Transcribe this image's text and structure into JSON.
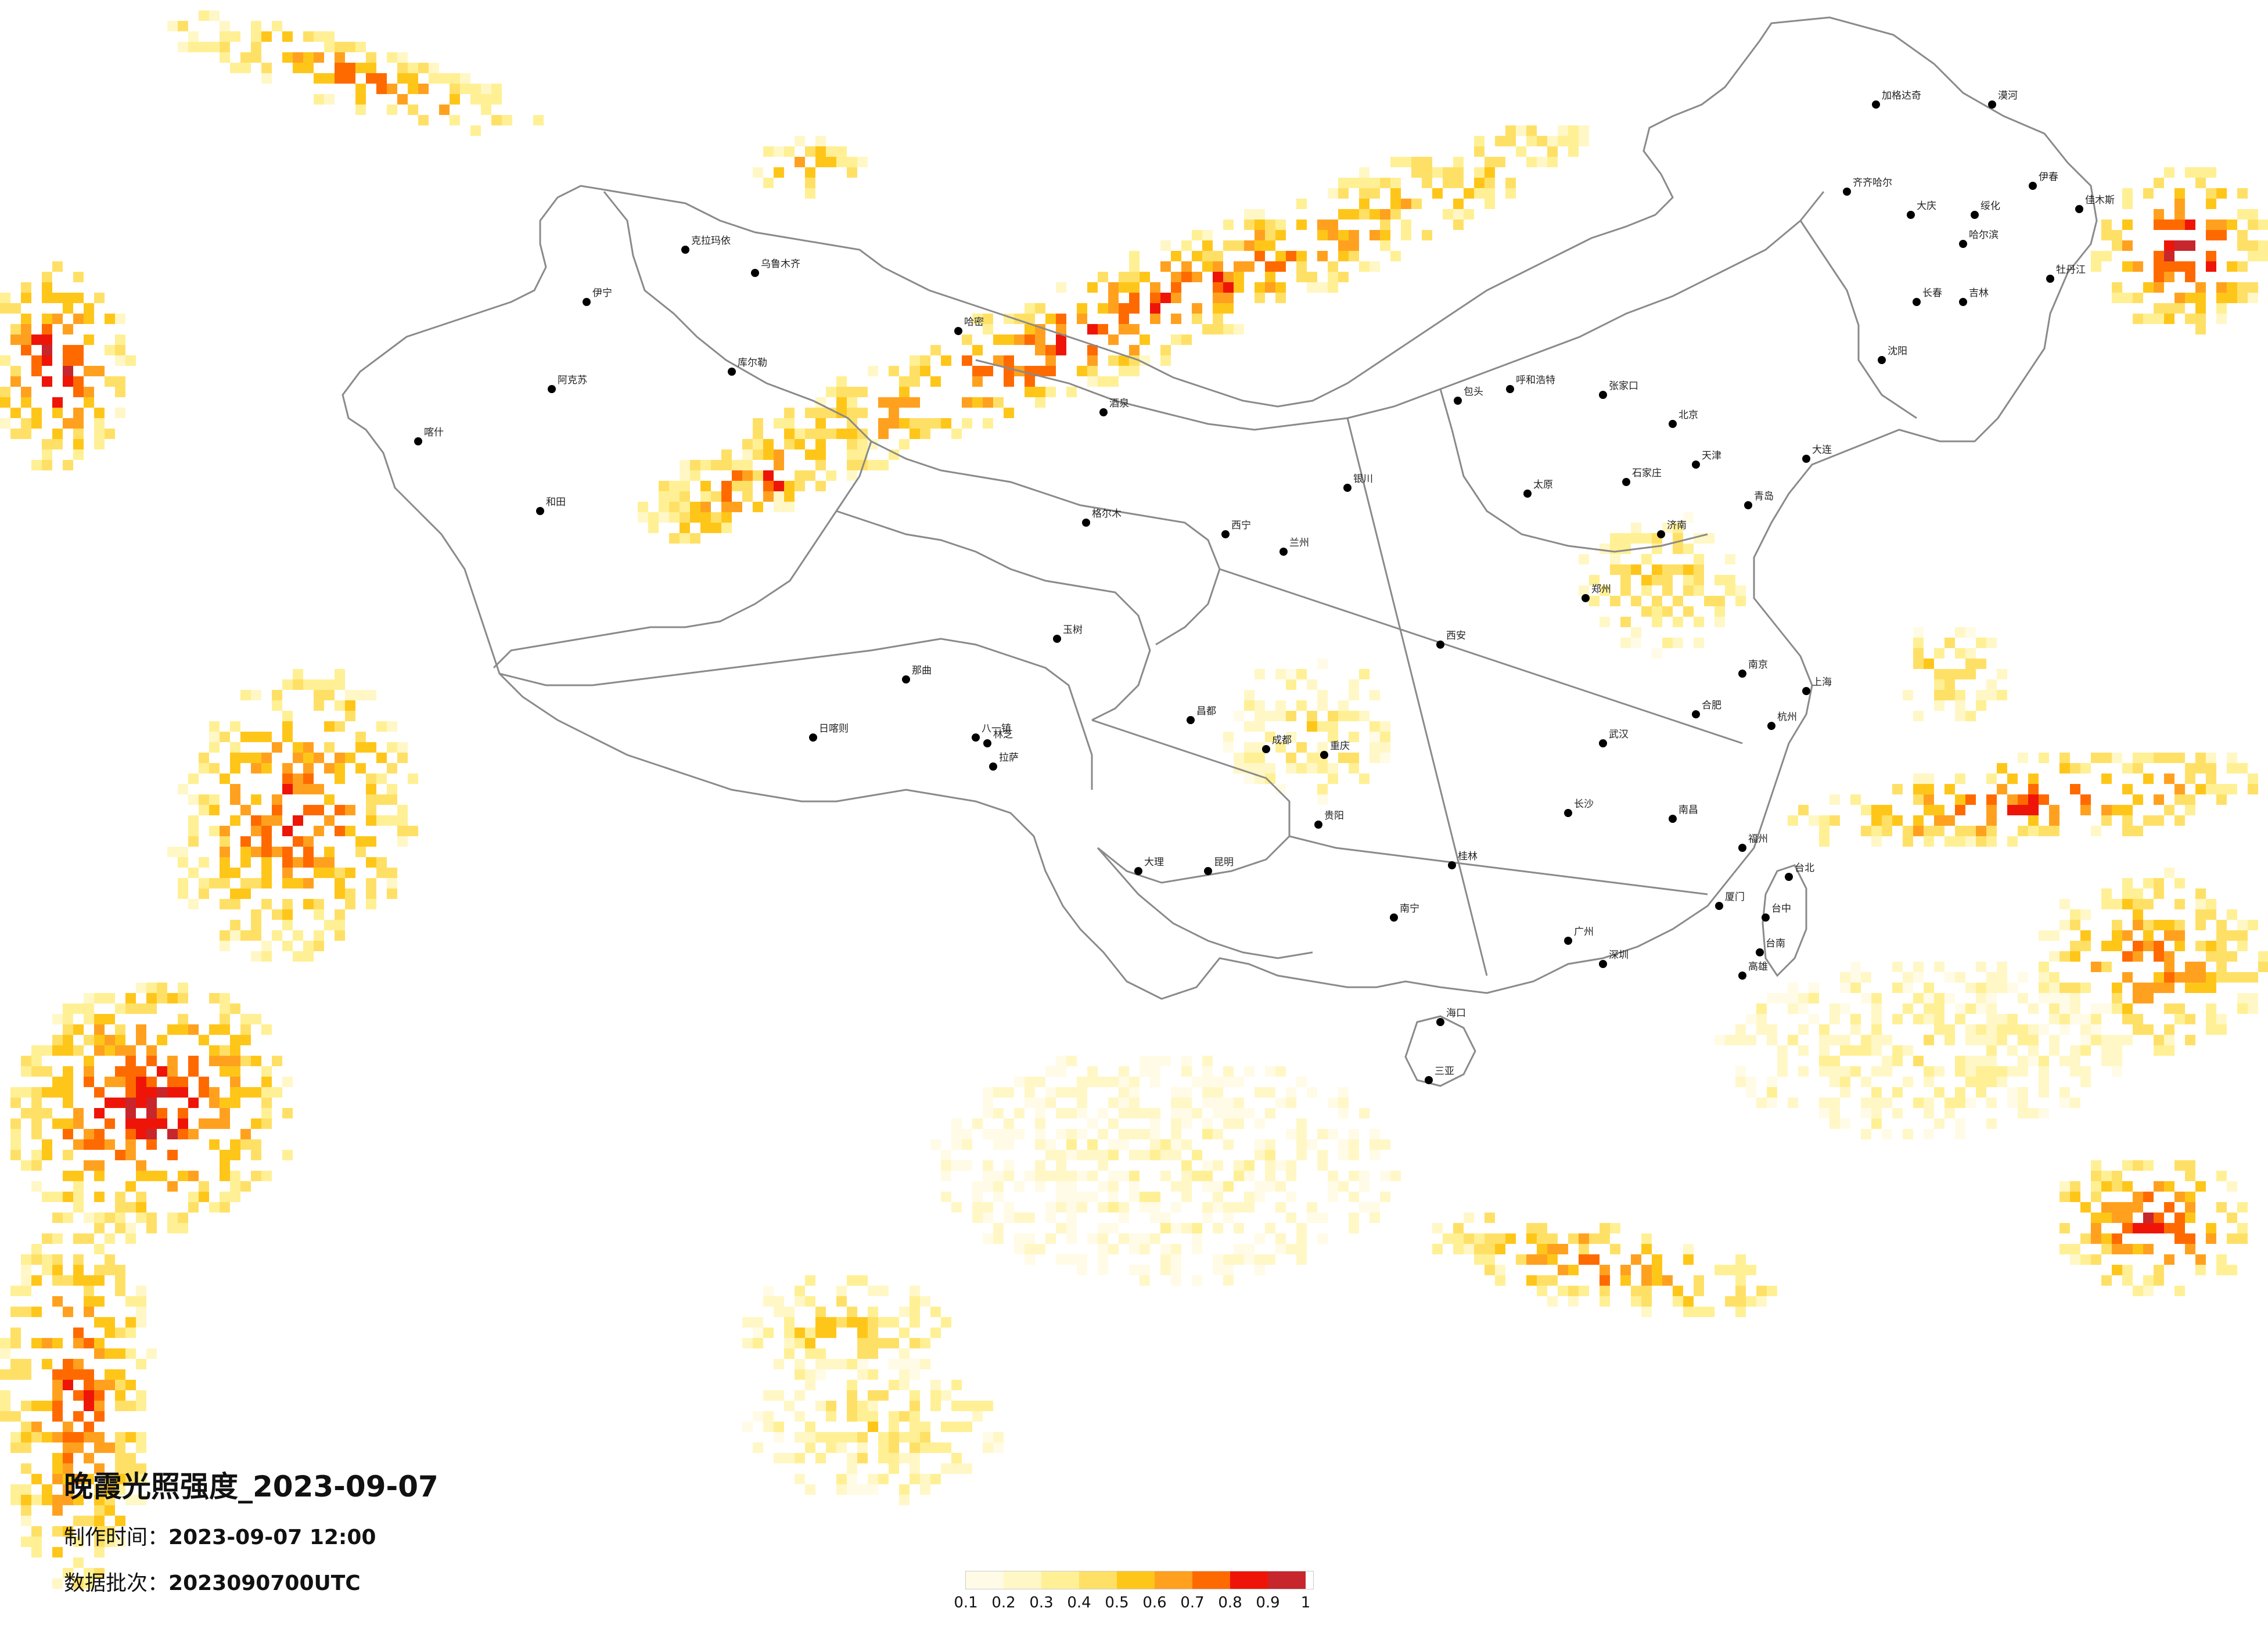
{
  "title": "晚霞光照强度_2023-09-07",
  "made_time_label": "制作时间：",
  "made_time_value": "2023-09-07 12:00",
  "batch_label": "数据批次：",
  "batch_value": "2023090700UTC",
  "legend": {
    "colors": [
      "#fffbe6",
      "#fff7c6",
      "#fff095",
      "#ffe066",
      "#ffc61a",
      "#ffa11f",
      "#ff6a00",
      "#ee1508",
      "#c8262d"
    ],
    "ticks": [
      "0.1",
      "0.2",
      "0.3",
      "0.4",
      "0.5",
      "0.6",
      "0.7",
      "0.8",
      "0.9",
      "1"
    ]
  },
  "cities": [
    {
      "name": "加格达奇"
    },
    {
      "name": "漠河"
    },
    {
      "name": "齐齐哈尔"
    },
    {
      "name": "大庆"
    },
    {
      "name": "哈尔滨"
    },
    {
      "name": "绥化"
    },
    {
      "name": "伊春"
    },
    {
      "name": "佳木斯"
    },
    {
      "name": "长春"
    },
    {
      "name": "吉林"
    },
    {
      "name": "牡丹江"
    },
    {
      "name": "沈阳"
    },
    {
      "name": "大连"
    },
    {
      "name": "呼和浩特"
    },
    {
      "name": "包头"
    },
    {
      "name": "北京"
    },
    {
      "name": "天津"
    },
    {
      "name": "石家庄"
    },
    {
      "name": "太原"
    },
    {
      "name": "济南"
    },
    {
      "name": "青岛"
    },
    {
      "name": "郑州"
    },
    {
      "name": "西安"
    },
    {
      "name": "兰州"
    },
    {
      "name": "西宁"
    },
    {
      "name": "银川"
    },
    {
      "name": "乌鲁木齐"
    },
    {
      "name": "克拉玛依"
    },
    {
      "name": "伊宁"
    },
    {
      "name": "哈密"
    },
    {
      "name": "库尔勒"
    },
    {
      "name": "阿克苏"
    },
    {
      "name": "喀什"
    },
    {
      "name": "和田"
    },
    {
      "name": "拉萨"
    },
    {
      "name": "日喀则"
    },
    {
      "name": "八一镇"
    },
    {
      "name": "林芝"
    },
    {
      "name": "那曲"
    },
    {
      "name": "昌都"
    },
    {
      "name": "玉树"
    },
    {
      "name": "成都"
    },
    {
      "name": "重庆"
    },
    {
      "name": "贵阳"
    },
    {
      "name": "昆明"
    },
    {
      "name": "大理"
    },
    {
      "name": "南宁"
    },
    {
      "name": "桂林"
    },
    {
      "name": "广州"
    },
    {
      "name": "深圳"
    },
    {
      "name": "海口"
    },
    {
      "name": "三亚"
    },
    {
      "name": "长沙"
    },
    {
      "name": "武汉"
    },
    {
      "name": "南昌"
    },
    {
      "name": "合肥"
    },
    {
      "name": "南京"
    },
    {
      "name": "上海"
    },
    {
      "name": "杭州"
    },
    {
      "name": "福州"
    },
    {
      "name": "厦门"
    },
    {
      "name": "台北"
    },
    {
      "name": "台中"
    },
    {
      "name": "台南"
    },
    {
      "name": "高雄"
    },
    {
      "name": "格尔木"
    },
    {
      "name": "酒泉"
    },
    {
      "name": "张家口"
    }
  ]
}
